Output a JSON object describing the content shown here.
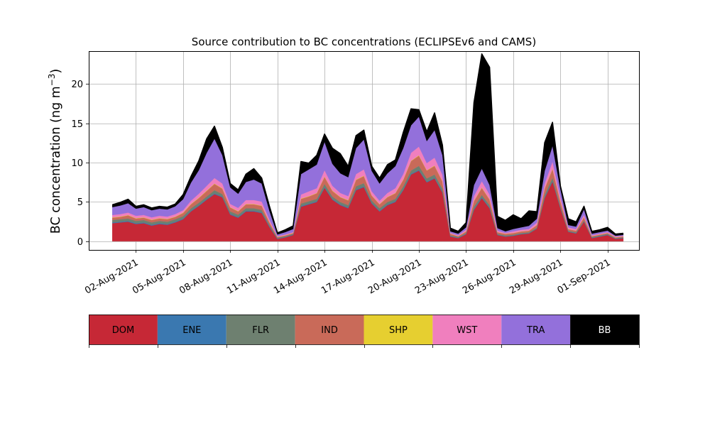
{
  "chart_data": {
    "type": "area",
    "stacked": true,
    "title": "Source contribution to BC concentrations (ECLIPSEv6 and CAMS)",
    "ylabel": "BC concentration (ng m⁻³)",
    "ylabel_base": "BC concentration (ng m",
    "ylabel_sup": "−3",
    "ylabel_tail": ")",
    "xlabel": "",
    "ylim": [
      -1.1,
      24.2
    ],
    "xlim": [
      "2021-07-30T00:00",
      "2021-09-03T00:00"
    ],
    "yticks": [
      0,
      5,
      10,
      15,
      20
    ],
    "xticks": [
      "02-Aug-2021",
      "05-Aug-2021",
      "08-Aug-2021",
      "11-Aug-2021",
      "14-Aug-2021",
      "17-Aug-2021",
      "20-Aug-2021",
      "23-Aug-2021",
      "26-Aug-2021",
      "29-Aug-2021",
      "01-Sep-2021"
    ],
    "xtick_dates": [
      "2021-08-02",
      "2021-08-05",
      "2021-08-08",
      "2021-08-11",
      "2021-08-14",
      "2021-08-17",
      "2021-08-20",
      "2021-08-23",
      "2021-08-26",
      "2021-08-29",
      "2021-09-01"
    ],
    "grid": true,
    "legend_position": "bottom",
    "x": [
      "2021-07-31T12:00",
      "2021-08-01T00:00",
      "2021-08-01T12:00",
      "2021-08-02T00:00",
      "2021-08-02T12:00",
      "2021-08-03T00:00",
      "2021-08-03T12:00",
      "2021-08-04T00:00",
      "2021-08-04T12:00",
      "2021-08-05T00:00",
      "2021-08-05T12:00",
      "2021-08-06T00:00",
      "2021-08-06T12:00",
      "2021-08-07T00:00",
      "2021-08-07T12:00",
      "2021-08-08T00:00",
      "2021-08-08T12:00",
      "2021-08-09T00:00",
      "2021-08-09T12:00",
      "2021-08-10T00:00",
      "2021-08-10T12:00",
      "2021-08-11T00:00",
      "2021-08-11T12:00",
      "2021-08-12T00:00",
      "2021-08-12T12:00",
      "2021-08-13T00:00",
      "2021-08-13T12:00",
      "2021-08-14T00:00",
      "2021-08-14T12:00",
      "2021-08-15T00:00",
      "2021-08-15T12:00",
      "2021-08-16T00:00",
      "2021-08-16T12:00",
      "2021-08-17T00:00",
      "2021-08-17T12:00",
      "2021-08-18T00:00",
      "2021-08-18T12:00",
      "2021-08-19T00:00",
      "2021-08-19T12:00",
      "2021-08-20T00:00",
      "2021-08-20T12:00",
      "2021-08-21T00:00",
      "2021-08-21T12:00",
      "2021-08-22T00:00",
      "2021-08-22T12:00",
      "2021-08-23T00:00",
      "2021-08-23T12:00",
      "2021-08-24T00:00",
      "2021-08-24T12:00",
      "2021-08-25T00:00",
      "2021-08-25T12:00",
      "2021-08-26T00:00",
      "2021-08-26T12:00",
      "2021-08-27T00:00",
      "2021-08-27T12:00",
      "2021-08-28T00:00",
      "2021-08-28T12:00",
      "2021-08-29T00:00",
      "2021-08-29T12:00",
      "2021-08-30T00:00",
      "2021-08-30T12:00",
      "2021-08-31T00:00",
      "2021-08-31T12:00",
      "2021-09-01T00:00",
      "2021-09-01T12:00",
      "2021-09-02T00:00"
    ],
    "series": [
      {
        "name": "DOM",
        "color": "#c62836",
        "values": [
          2.3,
          2.4,
          2.5,
          2.2,
          2.3,
          2.0,
          2.2,
          2.1,
          2.4,
          2.8,
          3.8,
          4.5,
          5.3,
          6.0,
          5.6,
          3.4,
          3.0,
          3.8,
          3.8,
          3.6,
          1.8,
          0.3,
          0.5,
          0.8,
          4.4,
          4.7,
          5.0,
          6.8,
          5.3,
          4.6,
          4.2,
          6.5,
          6.9,
          4.8,
          3.8,
          4.6,
          5.0,
          6.5,
          8.5,
          9.0,
          7.5,
          8.0,
          6.2,
          0.6,
          0.4,
          0.9,
          4.0,
          5.5,
          4.2,
          0.8,
          0.6,
          0.7,
          0.9,
          1.0,
          1.6,
          5.5,
          7.6,
          4.2,
          1.2,
          1.0,
          2.5,
          0.4,
          0.6,
          0.8,
          0.3,
          0.4
        ]
      },
      {
        "name": "ENE",
        "color": "#3a78b0",
        "values": [
          0.1,
          0.1,
          0.1,
          0.1,
          0.1,
          0.1,
          0.1,
          0.1,
          0.1,
          0.1,
          0.1,
          0.1,
          0.1,
          0.1,
          0.1,
          0.1,
          0.1,
          0.1,
          0.1,
          0.1,
          0.1,
          0.05,
          0.05,
          0.05,
          0.1,
          0.1,
          0.1,
          0.1,
          0.1,
          0.1,
          0.1,
          0.1,
          0.1,
          0.1,
          0.1,
          0.1,
          0.1,
          0.1,
          0.1,
          0.1,
          0.1,
          0.1,
          0.1,
          0.05,
          0.05,
          0.05,
          0.1,
          0.1,
          0.1,
          0.05,
          0.05,
          0.05,
          0.05,
          0.05,
          0.05,
          0.1,
          0.1,
          0.1,
          0.05,
          0.05,
          0.05,
          0.05,
          0.05,
          0.05,
          0.05,
          0.05
        ]
      },
      {
        "name": "FLR",
        "color": "#6e8070",
        "values": [
          0.3,
          0.3,
          0.3,
          0.3,
          0.3,
          0.3,
          0.3,
          0.3,
          0.3,
          0.3,
          0.3,
          0.3,
          0.3,
          0.4,
          0.3,
          0.3,
          0.3,
          0.3,
          0.3,
          0.3,
          0.2,
          0.1,
          0.1,
          0.1,
          0.3,
          0.3,
          0.3,
          0.4,
          0.3,
          0.3,
          0.3,
          0.4,
          0.4,
          0.3,
          0.3,
          0.3,
          0.3,
          0.4,
          0.4,
          0.5,
          0.4,
          0.4,
          0.4,
          0.1,
          0.1,
          0.1,
          0.3,
          0.3,
          0.3,
          0.1,
          0.1,
          0.1,
          0.1,
          0.1,
          0.1,
          0.3,
          0.4,
          0.2,
          0.1,
          0.1,
          0.1,
          0.1,
          0.1,
          0.1,
          0.05,
          0.05
        ]
      },
      {
        "name": "IND",
        "color": "#c96a59",
        "values": [
          0.3,
          0.3,
          0.4,
          0.3,
          0.3,
          0.3,
          0.3,
          0.3,
          0.3,
          0.4,
          0.5,
          0.6,
          0.7,
          0.8,
          0.7,
          0.5,
          0.4,
          0.5,
          0.5,
          0.5,
          0.3,
          0.1,
          0.1,
          0.1,
          0.6,
          0.6,
          0.7,
          0.9,
          0.7,
          0.6,
          0.6,
          0.8,
          0.9,
          0.6,
          0.5,
          0.6,
          0.7,
          0.8,
          1.2,
          1.3,
          1.0,
          1.1,
          0.9,
          0.2,
          0.1,
          0.2,
          0.7,
          0.9,
          0.7,
          0.2,
          0.2,
          0.2,
          0.2,
          0.2,
          0.3,
          0.8,
          1.1,
          0.6,
          0.2,
          0.2,
          0.4,
          0.1,
          0.1,
          0.1,
          0.1,
          0.1
        ]
      },
      {
        "name": "SHP",
        "color": "#e6cf30",
        "values": [
          0.05,
          0.05,
          0.05,
          0.05,
          0.05,
          0.05,
          0.05,
          0.05,
          0.05,
          0.05,
          0.05,
          0.05,
          0.05,
          0.05,
          0.05,
          0.05,
          0.05,
          0.05,
          0.05,
          0.05,
          0.05,
          0.02,
          0.02,
          0.02,
          0.05,
          0.05,
          0.05,
          0.05,
          0.05,
          0.05,
          0.05,
          0.05,
          0.05,
          0.05,
          0.05,
          0.05,
          0.05,
          0.05,
          0.05,
          0.05,
          0.05,
          0.05,
          0.05,
          0.02,
          0.02,
          0.02,
          0.05,
          0.05,
          0.05,
          0.02,
          0.02,
          0.02,
          0.02,
          0.02,
          0.02,
          0.05,
          0.05,
          0.05,
          0.02,
          0.02,
          0.02,
          0.02,
          0.02,
          0.02,
          0.02,
          0.02
        ]
      },
      {
        "name": "WST",
        "color": "#f07fbe",
        "values": [
          0.3,
          0.3,
          0.3,
          0.3,
          0.3,
          0.3,
          0.3,
          0.3,
          0.3,
          0.3,
          0.4,
          0.5,
          0.6,
          0.7,
          0.6,
          0.4,
          0.4,
          0.5,
          0.5,
          0.5,
          0.3,
          0.1,
          0.1,
          0.1,
          0.5,
          0.6,
          0.6,
          0.8,
          0.6,
          0.5,
          0.5,
          0.7,
          0.8,
          0.5,
          0.4,
          0.5,
          0.6,
          0.7,
          1.0,
          1.1,
          0.9,
          1.0,
          0.8,
          0.1,
          0.1,
          0.2,
          0.6,
          0.8,
          0.6,
          0.2,
          0.1,
          0.2,
          0.2,
          0.2,
          0.3,
          0.6,
          0.9,
          0.5,
          0.2,
          0.2,
          0.3,
          0.1,
          0.1,
          0.1,
          0.1,
          0.1
        ]
      },
      {
        "name": "TRA",
        "color": "#9370db",
        "values": [
          1.0,
          1.1,
          1.2,
          0.9,
          1.0,
          0.9,
          0.9,
          0.9,
          1.0,
          1.4,
          2.3,
          3.0,
          4.2,
          5.0,
          3.6,
          2.1,
          1.8,
          2.3,
          2.6,
          2.3,
          1.1,
          0.2,
          0.3,
          0.4,
          2.6,
          2.8,
          3.0,
          3.6,
          2.8,
          2.5,
          2.4,
          3.3,
          3.8,
          2.6,
          2.2,
          2.5,
          2.8,
          3.3,
          3.5,
          3.8,
          2.8,
          3.5,
          2.5,
          0.2,
          0.2,
          0.3,
          1.4,
          1.6,
          1.2,
          0.3,
          0.2,
          0.3,
          0.3,
          0.4,
          0.5,
          1.6,
          2.0,
          1.0,
          0.3,
          0.3,
          0.7,
          0.2,
          0.2,
          0.2,
          0.1,
          0.1
        ]
      },
      {
        "name": "BB",
        "color": "#000000",
        "values": [
          0.3,
          0.4,
          0.5,
          0.3,
          0.3,
          0.3,
          0.3,
          0.3,
          0.3,
          0.6,
          0.8,
          1.2,
          1.8,
          1.6,
          1.0,
          0.5,
          0.5,
          1.0,
          1.4,
          0.7,
          0.6,
          0.2,
          0.3,
          0.4,
          1.6,
          0.8,
          1.2,
          1.0,
          2.0,
          2.5,
          1.4,
          1.6,
          1.2,
          0.6,
          0.7,
          1.1,
          0.8,
          2.0,
          2.1,
          0.9,
          1.2,
          2.2,
          1.3,
          0.4,
          0.3,
          0.6,
          10.5,
          14.6,
          15.0,
          1.5,
          1.4,
          1.8,
          1.1,
          1.9,
          0.9,
          3.6,
          3.0,
          0.4,
          0.8,
          0.6,
          0.4,
          0.3,
          0.3,
          0.4,
          0.2,
          0.2
        ]
      }
    ],
    "legend": {
      "entries": [
        {
          "label": "DOM",
          "color": "#c62836",
          "text_color": "#000000"
        },
        {
          "label": "ENE",
          "color": "#3a78b0",
          "text_color": "#000000"
        },
        {
          "label": "FLR",
          "color": "#6e8070",
          "text_color": "#000000"
        },
        {
          "label": "IND",
          "color": "#c96a59",
          "text_color": "#000000"
        },
        {
          "label": "SHP",
          "color": "#e6cf30",
          "text_color": "#000000"
        },
        {
          "label": "WST",
          "color": "#f07fbe",
          "text_color": "#000000"
        },
        {
          "label": "TRA",
          "color": "#9370db",
          "text_color": "#000000"
        },
        {
          "label": "BB",
          "color": "#000000",
          "text_color": "#ffffff"
        }
      ]
    }
  }
}
